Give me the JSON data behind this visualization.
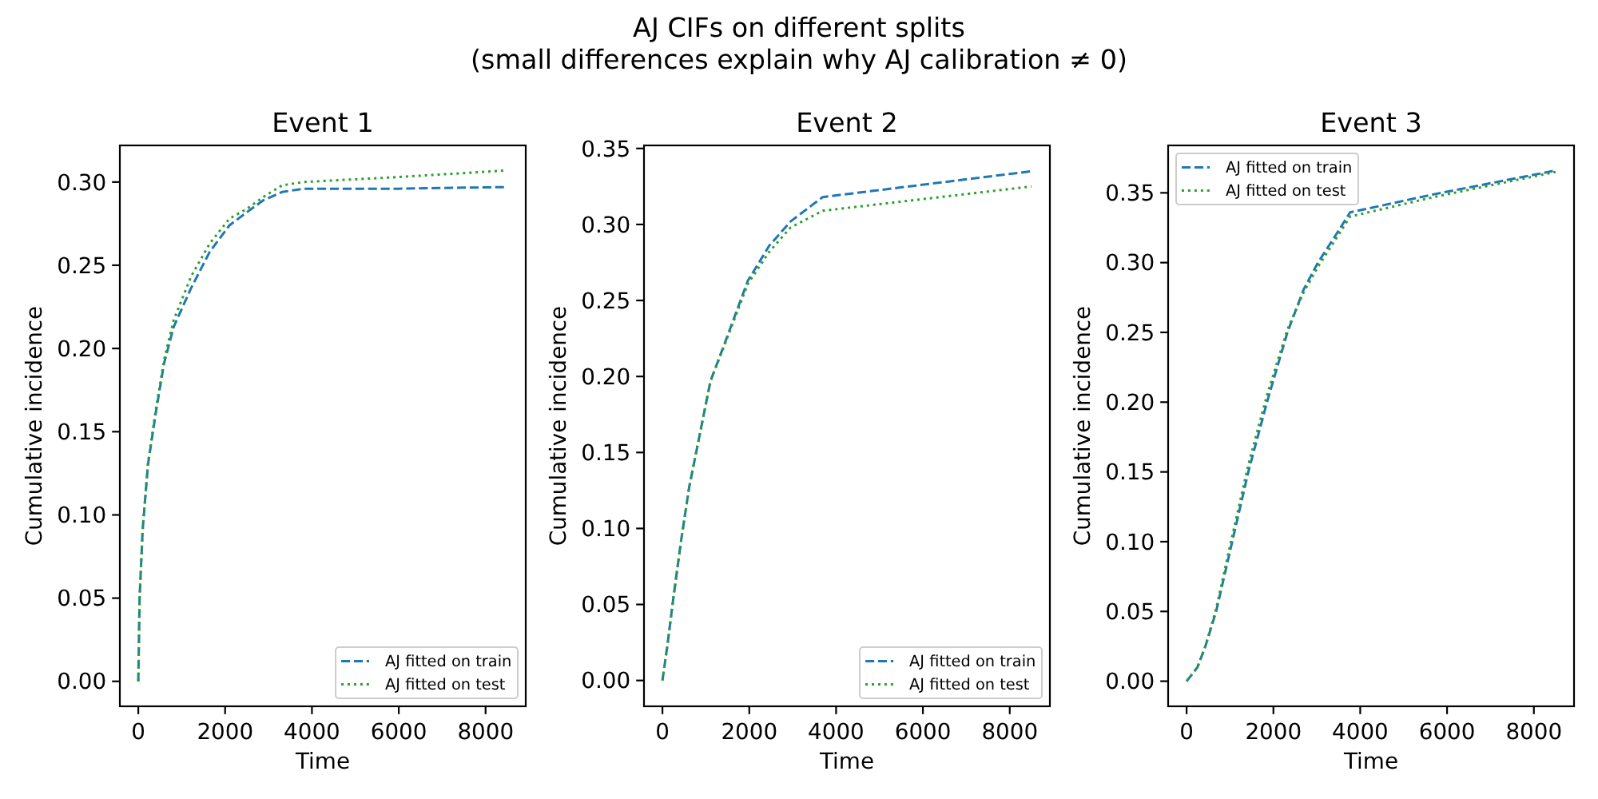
{
  "chart_data": [
    {
      "type": "other",
      "title": "AJ CIFs on different splits",
      "subtitle": "(small differences explain why AJ calibration ≠ 0)"
    },
    {
      "type": "line",
      "title": "Event 1",
      "xlabel": "Time",
      "ylabel": "Cumulative incidence",
      "xlim": [
        -425,
        8925
      ],
      "ylim": [
        -0.015,
        0.322
      ],
      "xticks": [
        0,
        2000,
        4000,
        6000,
        8000
      ],
      "yticks": [
        {
          "value": 0,
          "label": "0.00"
        },
        {
          "value": 0.05,
          "label": "0.05"
        },
        {
          "value": 0.1,
          "label": "0.10"
        },
        {
          "value": 0.15,
          "label": "0.15"
        },
        {
          "value": 0.2,
          "label": "0.20"
        },
        {
          "value": 0.25,
          "label": "0.25"
        },
        {
          "value": 0.3,
          "label": "0.30"
        }
      ],
      "legend": "bottom right",
      "series": [
        {
          "name": "AJ fitted on train",
          "color": "#1f77b4",
          "line_style": "dashed",
          "x": [
            0,
            30,
            100,
            222,
            407,
            593,
            815,
            1211,
            1644,
            2100,
            2507,
            2878,
            3311,
            3804,
            6000,
            8500
          ],
          "values": [
            0,
            0.05,
            0.091,
            0.13,
            0.162,
            0.191,
            0.213,
            0.236,
            0.258,
            0.274,
            0.282,
            0.289,
            0.294,
            0.296,
            0.296,
            0.297
          ]
        },
        {
          "name": "AJ fitted on test",
          "color": "#2ca02c",
          "line_style": "dotted",
          "x": [
            0,
            30,
            100,
            222,
            407,
            593,
            815,
            1211,
            1644,
            2100,
            2507,
            2878,
            3311,
            3804,
            6000,
            8500
          ],
          "values": [
            0,
            0.05,
            0.091,
            0.131,
            0.164,
            0.193,
            0.217,
            0.243,
            0.263,
            0.278,
            0.284,
            0.291,
            0.298,
            0.3,
            0.303,
            0.307
          ]
        }
      ]
    },
    {
      "type": "line",
      "title": "Event 2",
      "xlabel": "Time",
      "ylabel": "Cumulative incidence",
      "xlim": [
        -425,
        8925
      ],
      "ylim": [
        -0.017,
        0.352
      ],
      "xticks": [
        0,
        2000,
        4000,
        6000,
        8000
      ],
      "yticks": [
        {
          "value": 0,
          "label": "0.00"
        },
        {
          "value": 0.05,
          "label": "0.05"
        },
        {
          "value": 0.1,
          "label": "0.10"
        },
        {
          "value": 0.15,
          "label": "0.15"
        },
        {
          "value": 0.2,
          "label": "0.20"
        },
        {
          "value": 0.25,
          "label": "0.25"
        },
        {
          "value": 0.3,
          "label": "0.30"
        },
        {
          "value": 0.35,
          "label": "0.35"
        }
      ],
      "legend": "bottom right",
      "series": [
        {
          "name": "AJ fitted on train",
          "color": "#1f77b4",
          "line_style": "dashed",
          "x": [
            0,
            123,
            246,
            430,
            615,
            861,
            1107,
            1476,
            1968,
            2460,
            2952,
            3690,
            8500
          ],
          "values": [
            0,
            0.025,
            0.053,
            0.092,
            0.127,
            0.162,
            0.197,
            0.225,
            0.263,
            0.286,
            0.302,
            0.318,
            0.335
          ]
        },
        {
          "name": "AJ fitted on test",
          "color": "#2ca02c",
          "line_style": "dotted",
          "x": [
            0,
            123,
            246,
            430,
            615,
            861,
            1107,
            1476,
            1968,
            2460,
            2952,
            3690,
            8500
          ],
          "values": [
            0,
            0.025,
            0.053,
            0.092,
            0.127,
            0.162,
            0.197,
            0.224,
            0.261,
            0.282,
            0.298,
            0.309,
            0.325
          ]
        }
      ]
    },
    {
      "type": "line",
      "title": "Event 3",
      "xlabel": "Time",
      "ylabel": "Cumulative incidence",
      "xlim": [
        -425,
        8925
      ],
      "ylim": [
        -0.018,
        0.384
      ],
      "xticks": [
        0,
        2000,
        4000,
        6000,
        8000
      ],
      "yticks": [
        {
          "value": 0,
          "label": "0.00"
        },
        {
          "value": 0.05,
          "label": "0.05"
        },
        {
          "value": 0.1,
          "label": "0.10"
        },
        {
          "value": 0.15,
          "label": "0.15"
        },
        {
          "value": 0.2,
          "label": "0.20"
        },
        {
          "value": 0.25,
          "label": "0.25"
        },
        {
          "value": 0.3,
          "label": "0.30"
        },
        {
          "value": 0.35,
          "label": "0.35"
        }
      ],
      "legend": "top left",
      "series": [
        {
          "name": "AJ fitted on train",
          "color": "#1f77b4",
          "line_style": "dashed",
          "x": [
            0,
            250,
            433,
            681,
            1051,
            1422,
            1852,
            2322,
            2700,
            3026,
            3400,
            3767,
            5700,
            8500
          ],
          "values": [
            0,
            0.01,
            0.025,
            0.05,
            0.1,
            0.15,
            0.2,
            0.25,
            0.281,
            0.3,
            0.318,
            0.336,
            0.349,
            0.366
          ]
        },
        {
          "name": "AJ fitted on test",
          "color": "#2ca02c",
          "line_style": "dotted",
          "x": [
            0,
            250,
            433,
            681,
            1051,
            1422,
            1852,
            2322,
            2700,
            3026,
            3400,
            3767,
            5700,
            8500
          ],
          "values": [
            0,
            0.01,
            0.025,
            0.052,
            0.104,
            0.155,
            0.205,
            0.252,
            0.279,
            0.297,
            0.315,
            0.333,
            0.347,
            0.365
          ]
        }
      ]
    }
  ]
}
